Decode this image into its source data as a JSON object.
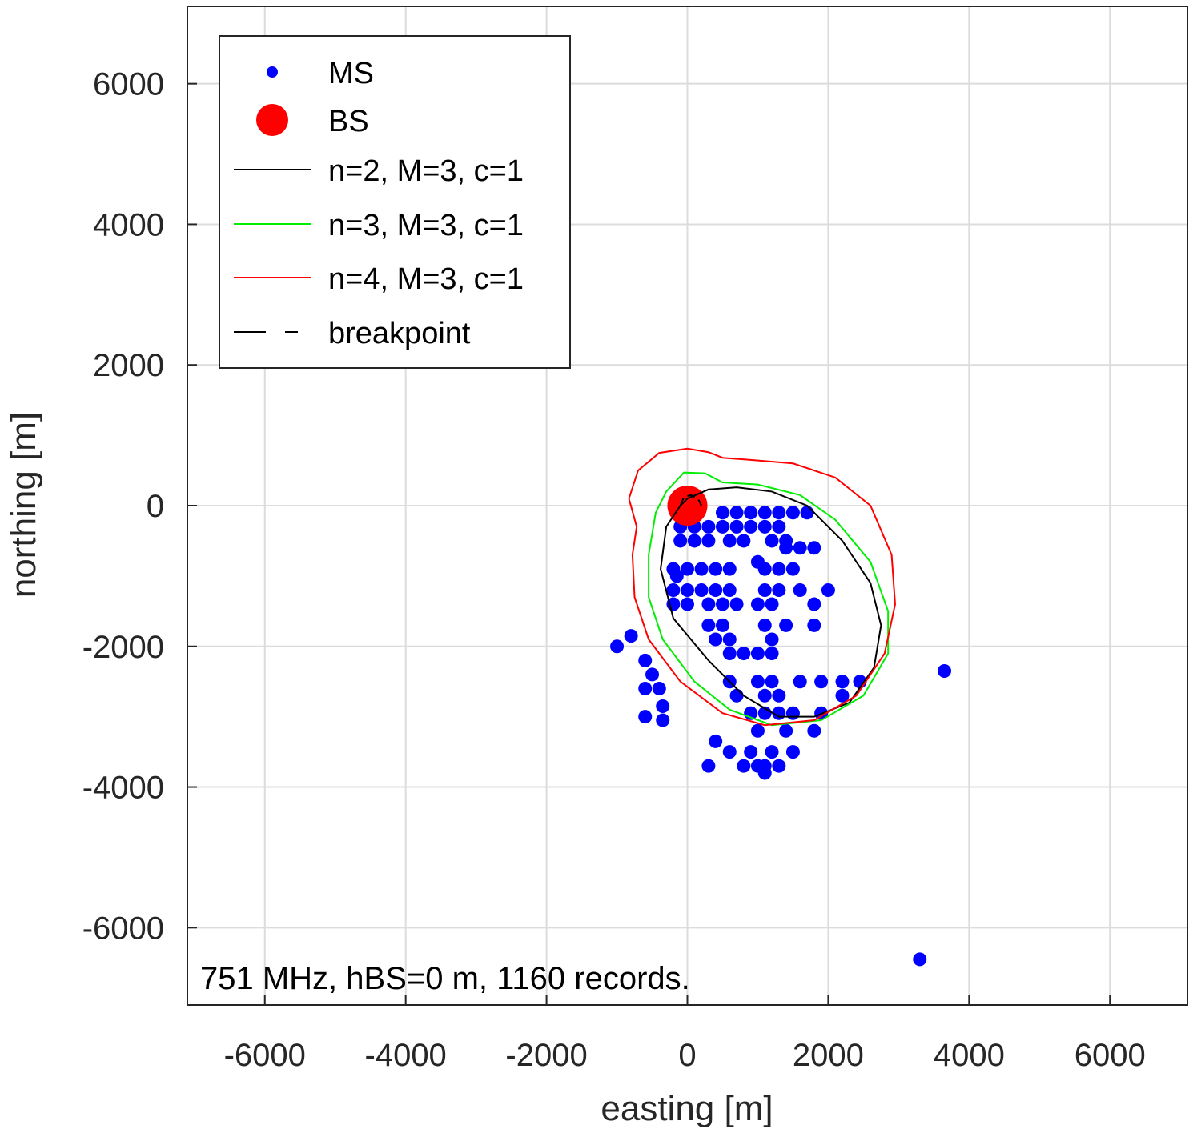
{
  "chart_data": {
    "type": "scatter",
    "xlabel": "easting [m]",
    "ylabel": "northing [m]",
    "annotation": "751 MHz, hBS=0 m, 1160 records.",
    "xlim": [
      -7100,
      7100
    ],
    "ylim": [
      -7100,
      7100
    ],
    "xticks": [
      -6000,
      -4000,
      -2000,
      0,
      2000,
      4000,
      6000
    ],
    "yticks": [
      -6000,
      -4000,
      -2000,
      0,
      2000,
      4000,
      6000
    ],
    "grid": true,
    "legend": "top-left",
    "series": [
      {
        "name": "MS",
        "color": "#0000ff",
        "marker": "dot",
        "x": [
          500,
          700,
          900,
          1100,
          1300,
          1500,
          1700,
          -100,
          100,
          300,
          500,
          700,
          900,
          1100,
          1300,
          -100,
          100,
          300,
          600,
          800,
          1200,
          1400,
          1400,
          1600,
          1800,
          -200,
          0,
          200,
          400,
          600,
          1100,
          1300,
          1500,
          -200,
          0,
          200,
          400,
          600,
          1100,
          1300,
          1600,
          2000,
          -200,
          0,
          300,
          500,
          700,
          1000,
          1200,
          1800,
          300,
          500,
          1100,
          1400,
          1800,
          400,
          600,
          1200,
          600,
          800,
          1000,
          1200,
          600,
          1000,
          1200,
          1600,
          1900,
          2200,
          2450,
          700,
          1100,
          1300,
          2200,
          900,
          1100,
          1300,
          1500,
          1900,
          1000,
          1400,
          1800,
          600,
          900,
          1200,
          1500,
          800,
          1000,
          1100,
          1300,
          -1000,
          -800,
          -600,
          -500,
          -600,
          -400,
          -600,
          -350,
          -350,
          300,
          400,
          3650,
          3300,
          1100,
          -150,
          1000
        ],
        "y": [
          -100,
          -100,
          -100,
          -100,
          -100,
          -100,
          -100,
          -300,
          -300,
          -300,
          -300,
          -300,
          -300,
          -300,
          -300,
          -500,
          -500,
          -500,
          -500,
          -500,
          -500,
          -500,
          -600,
          -600,
          -600,
          -900,
          -900,
          -900,
          -900,
          -900,
          -900,
          -900,
          -900,
          -1200,
          -1200,
          -1200,
          -1200,
          -1200,
          -1200,
          -1200,
          -1200,
          -1200,
          -1400,
          -1400,
          -1400,
          -1400,
          -1400,
          -1400,
          -1400,
          -1400,
          -1700,
          -1700,
          -1700,
          -1700,
          -1700,
          -1900,
          -1900,
          -1900,
          -2100,
          -2100,
          -2100,
          -2100,
          -2500,
          -2500,
          -2500,
          -2500,
          -2500,
          -2500,
          -2500,
          -2700,
          -2700,
          -2700,
          -2700,
          -2950,
          -2950,
          -2950,
          -2950,
          -2950,
          -3200,
          -3200,
          -3200,
          -3500,
          -3500,
          -3500,
          -3500,
          -3700,
          -3700,
          -3700,
          -3700,
          -2000,
          -1850,
          -2200,
          -2400,
          -2600,
          -2600,
          -3000,
          -2850,
          -3050,
          -3700,
          -3350,
          -2350,
          -6450,
          -3800,
          -1000,
          -800
        ]
      },
      {
        "name": "BS",
        "color": "#ff0000",
        "marker": "disc",
        "x": [
          0
        ],
        "y": [
          0
        ]
      },
      {
        "name": "n=2, M=3, c=1",
        "color": "#000000",
        "marker": "line",
        "x": [
          0,
          300,
          700,
          1200,
          1700,
          2200,
          2600,
          2750,
          2650,
          2300,
          1800,
          1300,
          800,
          300,
          -200,
          -380,
          -300,
          -100,
          0
        ],
        "y": [
          100,
          230,
          260,
          200,
          0,
          -500,
          -1100,
          -1700,
          -2300,
          -2800,
          -3000,
          -3000,
          -2700,
          -2200,
          -1600,
          -900,
          -300,
          0,
          100
        ]
      },
      {
        "name": "n=3, M=3, c=1",
        "color": "#00ee00",
        "marker": "line",
        "x": [
          -300,
          -50,
          250,
          500,
          1000,
          1600,
          2100,
          2600,
          2850,
          2850,
          2500,
          1900,
          1200,
          600,
          100,
          -350,
          -550,
          -550,
          -450,
          -300
        ],
        "y": [
          200,
          470,
          460,
          330,
          300,
          150,
          -200,
          -800,
          -1500,
          -2100,
          -2700,
          -3050,
          -3120,
          -2900,
          -2500,
          -1900,
          -1300,
          -700,
          -100,
          200
        ]
      },
      {
        "name": "n=4, M=3, c=1",
        "color": "#ff0000",
        "marker": "line",
        "x": [
          -830,
          -700,
          -400,
          0,
          300,
          500,
          900,
          1500,
          2100,
          2600,
          2900,
          2950,
          2800,
          2400,
          1800,
          1100,
          500,
          -100,
          -550,
          -750,
          -780,
          -720,
          -830
        ],
        "y": [
          100,
          500,
          750,
          810,
          760,
          680,
          650,
          600,
          400,
          0,
          -700,
          -1400,
          -2100,
          -2700,
          -3050,
          -3120,
          -2950,
          -2500,
          -1900,
          -1300,
          -700,
          -300,
          100
        ]
      },
      {
        "name": "breakpoint",
        "color": "#000000",
        "marker": "dashed",
        "x": [
          -100,
          -50,
          50,
          150,
          200
        ],
        "y": [
          0,
          120,
          150,
          100,
          0
        ]
      }
    ]
  }
}
